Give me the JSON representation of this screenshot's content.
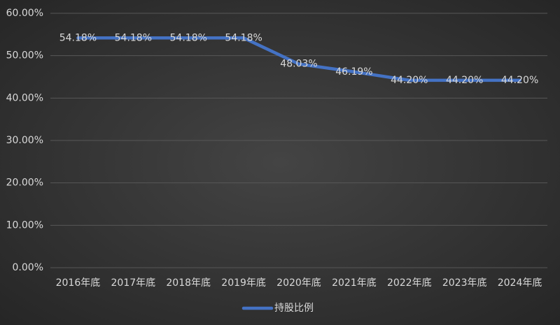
{
  "chart_data": {
    "type": "line",
    "categories": [
      "2016年底",
      "2017年底",
      "2018年底",
      "2019年底",
      "2020年底",
      "2021年底",
      "2022年底",
      "2023年底",
      "2024年底"
    ],
    "series": [
      {
        "name": "持股比例",
        "color": "#4472c4",
        "values": [
          54.18,
          54.18,
          54.18,
          54.18,
          48.03,
          46.19,
          44.2,
          44.2,
          44.2
        ],
        "value_labels": [
          "54.18%",
          "54.18%",
          "54.18%",
          "54.18%",
          "48.03%",
          "46.19%",
          "44.20%",
          "44.20%",
          "44.20%"
        ]
      }
    ],
    "ylim": [
      0,
      60
    ],
    "yticks": [
      {
        "value": 0,
        "label": "0.00%"
      },
      {
        "value": 10,
        "label": "10.00%"
      },
      {
        "value": 20,
        "label": "20.00%"
      },
      {
        "value": 30,
        "label": "30.00%"
      },
      {
        "value": 40,
        "label": "40.00%"
      },
      {
        "value": 50,
        "label": "50.00%"
      },
      {
        "value": 60,
        "label": "60.00%"
      }
    ],
    "grid": true,
    "legend": "bottom"
  }
}
